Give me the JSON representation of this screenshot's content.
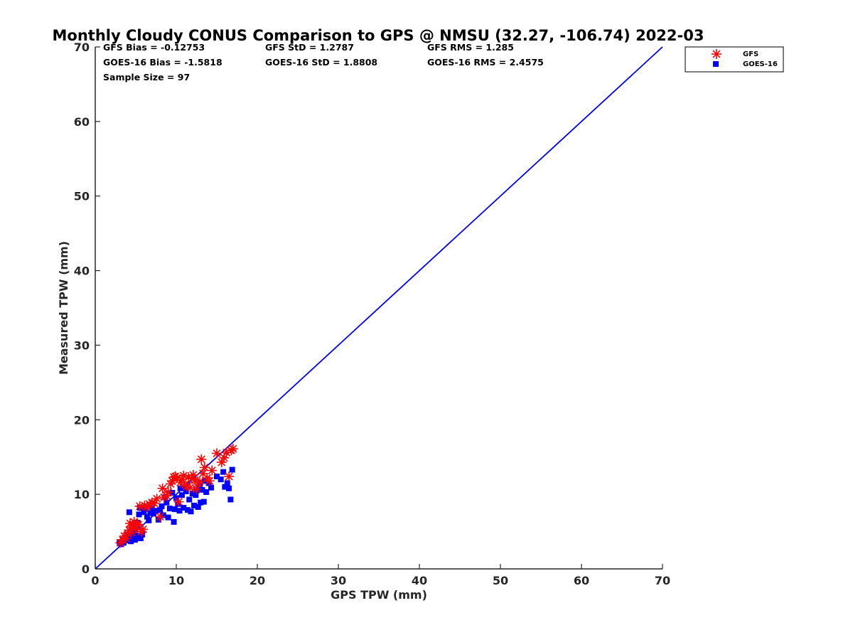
{
  "chart_data": {
    "type": "scatter",
    "title": "Monthly Cloudy CONUS Comparison to GPS @ NMSU (32.27, -106.74) 2022-03",
    "xlabel": "GPS TPW (mm)",
    "ylabel": "Measured TPW (mm)",
    "xlim": [
      0,
      70
    ],
    "ylim": [
      0,
      70
    ],
    "xticks": [
      "0",
      "10",
      "20",
      "30",
      "40",
      "50",
      "60",
      "70"
    ],
    "yticks": [
      "0",
      "10",
      "20",
      "30",
      "40",
      "50",
      "60",
      "70"
    ],
    "grid": false,
    "legend_position": "top-right",
    "stats": [
      "GFS Bias = -0.12753",
      "GFS StD = 1.2787",
      "GFS RMS = 1.285",
      "GOES-16 Bias = -1.5818",
      "GOES-16 StD = 1.8808",
      "GOES-16 RMS = 2.4575",
      "Sample Size = 97"
    ],
    "reference_line": {
      "x": [
        0,
        70
      ],
      "y": [
        0,
        70
      ],
      "color": "#0000ff"
    },
    "series": [
      {
        "name": "GFS",
        "marker": "asterisk",
        "color": "#ff0000",
        "x": [
          3.1,
          3.4,
          3.6,
          3.8,
          4.0,
          4.2,
          4.3,
          4.5,
          4.6,
          4.8,
          5.0,
          5.2,
          5.3,
          5.5,
          5.7,
          5.9,
          6.1,
          6.4,
          6.7,
          7.0,
          7.3,
          7.6,
          8.0,
          8.3,
          8.5,
          8.8,
          9.0,
          9.3,
          9.5,
          9.7,
          9.9,
          10.1,
          10.3,
          10.5,
          10.7,
          10.9,
          11.1,
          11.3,
          11.5,
          11.7,
          11.9,
          12.1,
          12.3,
          12.5,
          12.7,
          12.9,
          13.1,
          13.3,
          13.5,
          13.8,
          14.1,
          14.4,
          15.0,
          15.6,
          15.9,
          16.2,
          16.5,
          16.8,
          17.0
        ],
        "y": [
          3.5,
          3.9,
          4.4,
          4.1,
          4.8,
          5.2,
          6.1,
          4.9,
          5.6,
          6.3,
          5.4,
          6.0,
          5.9,
          8.4,
          5.0,
          5.3,
          8.5,
          8.3,
          8.7,
          8.9,
          8.8,
          9.4,
          7.0,
          10.8,
          9.6,
          9.8,
          10.3,
          11.4,
          11.8,
          12.3,
          12.4,
          12.2,
          9.0,
          11.6,
          12.0,
          12.5,
          11.3,
          11.1,
          12.3,
          10.9,
          12.1,
          12.6,
          11.9,
          10.7,
          11.5,
          11.7,
          14.7,
          12.8,
          13.6,
          12.2,
          11.8,
          13.2,
          15.5,
          14.3,
          14.9,
          15.6,
          12.4,
          15.9,
          16.1
        ]
      },
      {
        "name": "GOES-16",
        "marker": "square",
        "color": "#0000ff",
        "x": [
          3.0,
          3.2,
          3.4,
          3.5,
          3.7,
          3.9,
          4.0,
          4.2,
          4.3,
          4.4,
          4.5,
          4.6,
          4.7,
          4.8,
          4.9,
          5.0,
          5.1,
          5.2,
          5.3,
          5.4,
          5.5,
          5.6,
          5.8,
          6.0,
          6.2,
          6.4,
          6.6,
          6.8,
          7.0,
          7.2,
          7.5,
          7.8,
          8.0,
          8.2,
          8.4,
          8.6,
          8.8,
          9.0,
          9.2,
          9.5,
          9.7,
          9.8,
          10.0,
          10.2,
          10.4,
          10.5,
          10.7,
          10.9,
          11.0,
          11.2,
          11.4,
          11.6,
          11.8,
          12.0,
          12.2,
          12.4,
          12.5,
          12.7,
          12.9,
          13.0,
          13.2,
          13.4,
          13.5,
          13.7,
          14.0,
          14.3,
          15.0,
          15.5,
          15.8,
          16.0,
          16.3,
          16.5,
          16.7,
          16.9
        ],
        "y": [
          3.6,
          3.3,
          3.9,
          3.5,
          4.2,
          3.8,
          4.6,
          7.6,
          4.1,
          3.7,
          4.8,
          4.3,
          5.2,
          6.0,
          3.9,
          4.5,
          5.6,
          6.2,
          4.4,
          7.3,
          8.2,
          4.1,
          4.6,
          7.6,
          8.0,
          7.0,
          6.5,
          7.5,
          8.1,
          7.4,
          7.8,
          6.6,
          7.9,
          8.4,
          7.2,
          9.6,
          8.9,
          6.9,
          8.1,
          10.2,
          6.3,
          8.0,
          9.5,
          8.7,
          7.8,
          10.8,
          9.9,
          8.2,
          11.0,
          10.4,
          7.9,
          9.3,
          7.7,
          10.1,
          8.5,
          9.9,
          10.5,
          8.3,
          11.2,
          8.9,
          10.6,
          9.0,
          11.8,
          10.3,
          11.5,
          10.9,
          12.4,
          12.0,
          13.0,
          11.0,
          11.5,
          10.8,
          9.3,
          13.3
        ]
      }
    ]
  }
}
